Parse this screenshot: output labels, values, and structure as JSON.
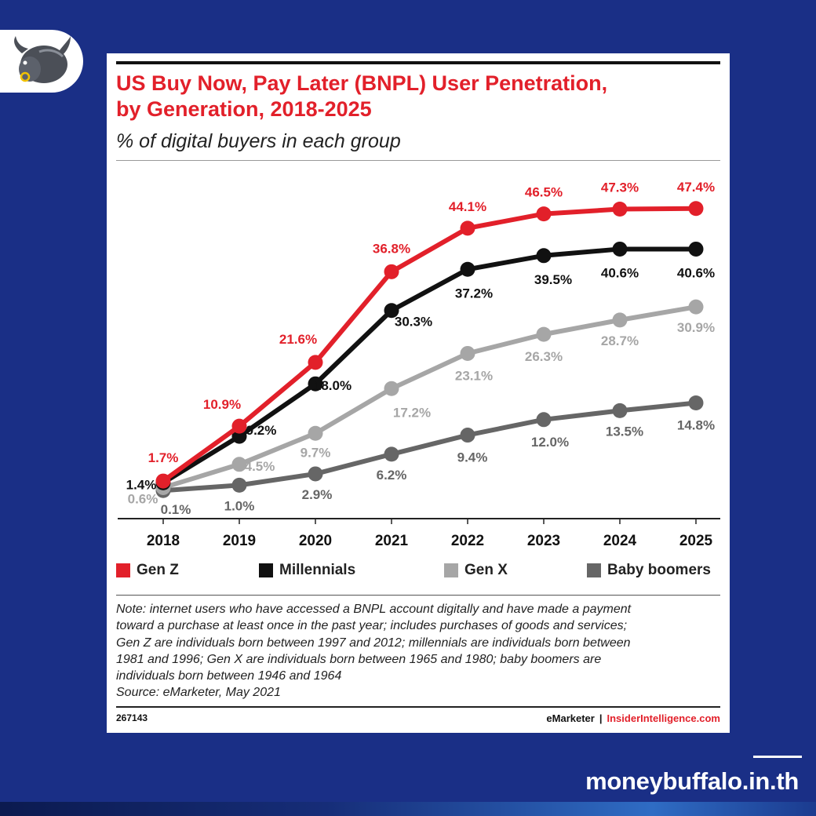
{
  "title": "US Buy Now, Pay Later (BNPL) User Penetration, by Generation, 2018-2025",
  "title_lines": [
    "US Buy Now, Pay Later (BNPL) User Penetration,",
    "by Generation, 2018-2025"
  ],
  "subtitle": "% of digital buyers in each group",
  "legend": [
    {
      "label": "Gen Z",
      "color": "#e2202a"
    },
    {
      "label": "Millennials",
      "color": "#111111"
    },
    {
      "label": "Gen X",
      "color": "#a6a6a6"
    },
    {
      "label": "Baby boomers",
      "color": "#666666"
    }
  ],
  "note_lines": [
    "Note: internet users who have accessed a BNPL account digitally and have made a payment",
    "toward a purchase at least once in the past year; includes purchases of goods and services;",
    "Gen Z are individuals born between 1997 and 2012; millennials are individuals born between",
    "1981 and 1996; Gen X are individuals born between 1965 and 1980; baby boomers are",
    "individuals born between 1946 and 1964",
    "Source: eMarketer, May 2021"
  ],
  "footer": {
    "chart_id": "267143",
    "brand_left": "eMarketer",
    "separator": "|",
    "brand_right": "InsiderIntelligence.com"
  },
  "site": "moneybuffalo.in.th",
  "logo": {
    "icon": "buffalo-icon"
  },
  "chart_data": {
    "type": "line",
    "title": "US Buy Now, Pay Later (BNPL) User Penetration, by Generation, 2018-2025",
    "subtitle": "% of digital buyers in each group",
    "xlabel": "",
    "ylabel": "",
    "categories": [
      "2018",
      "2019",
      "2020",
      "2021",
      "2022",
      "2023",
      "2024",
      "2025"
    ],
    "ylim": [
      0,
      50
    ],
    "grid": false,
    "legend_position": "bottom",
    "series": [
      {
        "name": "Gen Z",
        "color": "#e2202a",
        "values": [
          1.7,
          10.9,
          21.6,
          36.8,
          44.1,
          46.5,
          47.3,
          47.4
        ],
        "labels": [
          "1.7%",
          "10.9%",
          "21.6%",
          "36.8%",
          "44.1%",
          "46.5%",
          "47.3%",
          "47.4%"
        ]
      },
      {
        "name": "Millennials",
        "color": "#111111",
        "values": [
          1.4,
          9.2,
          18.0,
          30.3,
          37.2,
          39.5,
          40.6,
          40.6
        ],
        "labels": [
          "1.4%",
          "9.2%",
          "18.0%",
          "30.3%",
          "37.2%",
          "39.5%",
          "40.6%",
          "40.6%"
        ]
      },
      {
        "name": "Gen X",
        "color": "#a6a6a6",
        "values": [
          0.6,
          4.5,
          9.7,
          17.2,
          23.1,
          26.3,
          28.7,
          30.9
        ],
        "labels": [
          "0.6%",
          "4.5%",
          "9.7%",
          "17.2%",
          "23.1%",
          "26.3%",
          "28.7%",
          "30.9%"
        ]
      },
      {
        "name": "Baby boomers",
        "color": "#666666",
        "values": [
          0.1,
          1.0,
          2.9,
          6.2,
          9.4,
          12.0,
          13.5,
          14.8
        ],
        "labels": [
          "0.1%",
          "1.0%",
          "2.9%",
          "6.2%",
          "9.4%",
          "12.0%",
          "13.5%",
          "14.8%"
        ]
      }
    ]
  }
}
